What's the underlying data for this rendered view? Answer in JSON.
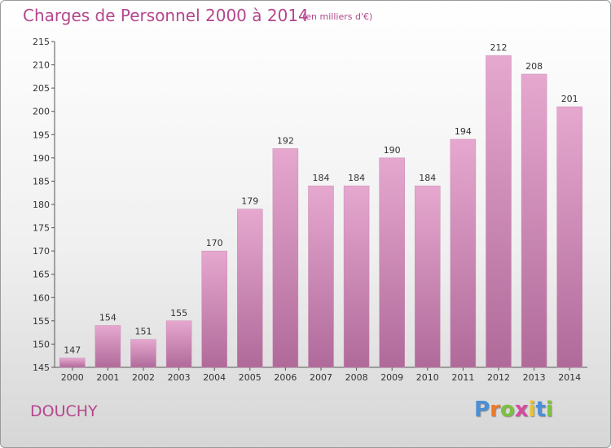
{
  "title": "Charges de Personnel 2000 à 2014",
  "unit": "(en milliers d'€)",
  "commune": "DOUCHY",
  "logo": {
    "letters": [
      "P",
      "r",
      "o",
      "x",
      "i",
      "t",
      "i"
    ],
    "colors": [
      "#4a8fd6",
      "#e97b2c",
      "#7cc242",
      "#d64aa0",
      "#e9c22c",
      "#4a8fd6",
      "#7cc242"
    ]
  },
  "colors": {
    "bar_top": "#e6a8cf",
    "bar_bottom": "#b06a9a",
    "text": "#b5468d"
  },
  "chart_data": {
    "type": "bar",
    "title": "Charges de Personnel 2000 à 2014",
    "categories": [
      "2000",
      "2001",
      "2002",
      "2003",
      "2004",
      "2005",
      "2006",
      "2007",
      "2008",
      "2009",
      "2010",
      "2011",
      "2012",
      "2013",
      "2014"
    ],
    "values": [
      147,
      154,
      151,
      155,
      170,
      179,
      192,
      184,
      184,
      190,
      184,
      194,
      212,
      208,
      201
    ],
    "ylim": [
      145,
      215
    ],
    "yticks": [
      145,
      150,
      155,
      160,
      165,
      170,
      175,
      180,
      185,
      190,
      195,
      200,
      205,
      210,
      215
    ],
    "grid": false,
    "legend": "none"
  }
}
